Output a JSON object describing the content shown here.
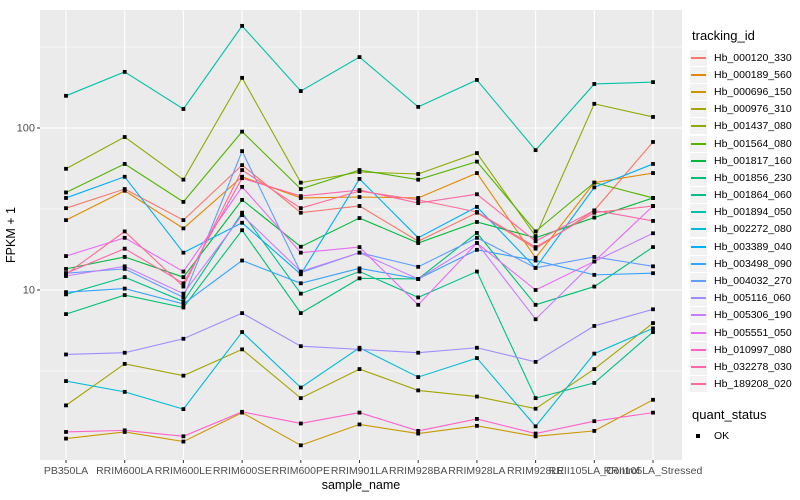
{
  "chart_data": {
    "type": "line",
    "xlabel": "sample_name",
    "ylabel": "FPKM + 1",
    "y_scale": "log10",
    "y_ticks": [
      10,
      100
    ],
    "y_minor": [
      3.162,
      31.62,
      316.2
    ],
    "ylim": [
      0.89,
      535
    ],
    "grid": "on",
    "panel_bg": "#EBEBEB",
    "grid_color": "#FFFFFF",
    "tick_text_color": "#4D4D4D",
    "point_color": "#000000",
    "legend_position": "right",
    "legend_title": "tracking_id",
    "legend2_title": "quant_status",
    "legend2_items": [
      {
        "label": "OK",
        "marker": "square"
      }
    ],
    "categories": [
      "PB350LA",
      "RRIM600LA",
      "RRIM600LE",
      "RRIM600SE",
      "RRIM600PE",
      "RRIM901LA",
      "RRIM928BA",
      "RRIM928LA",
      "RRIM928LE",
      "RRII105LA_Control",
      "RRII105LA_Stressed"
    ],
    "series": [
      {
        "name": "Hb_000120_330",
        "color": "#F8766D",
        "values": [
          32,
          42,
          27,
          59,
          30,
          33,
          20,
          30,
          18,
          31,
          82
        ]
      },
      {
        "name": "Hb_000189_560",
        "color": "#E58700",
        "values": [
          27,
          41,
          24,
          50,
          37,
          37.5,
          37,
          52.7,
          15.8,
          46,
          52.7
        ]
      },
      {
        "name": "Hb_000696_150",
        "color": "#C99800",
        "values": [
          1.21,
          1.33,
          1.16,
          1.75,
          1.1,
          1.48,
          1.3,
          1.45,
          1.25,
          1.35,
          2.1
        ]
      },
      {
        "name": "Hb_000976_310",
        "color": "#A3A500",
        "values": [
          1.94,
          3.5,
          2.96,
          4.3,
          2.15,
          3.25,
          2.4,
          2.2,
          1.85,
          3.25,
          6.25
        ]
      },
      {
        "name": "Hb_001437_080",
        "color": "#8CAB00",
        "values": [
          56,
          88,
          48,
          204,
          46,
          53.5,
          52,
          70,
          21.5,
          141,
          117
        ]
      },
      {
        "name": "Hb_001564_080",
        "color": "#52B400",
        "values": [
          40,
          60,
          35,
          95,
          42,
          55,
          48,
          62,
          23,
          46,
          37
        ]
      },
      {
        "name": "Hb_001817_160",
        "color": "#00BA38",
        "values": [
          13.5,
          16,
          12,
          36,
          18.5,
          27.8,
          19.5,
          26.3,
          21,
          28,
          37
        ]
      },
      {
        "name": "Hb_001856_230",
        "color": "#00BF74",
        "values": [
          7.1,
          9.3,
          7.8,
          23.4,
          7.2,
          11.8,
          11.7,
          22.5,
          8.1,
          10.5,
          18.4
        ]
      },
      {
        "name": "Hb_001864_060",
        "color": "#00C08B",
        "values": [
          9.4,
          12,
          8.5,
          30,
          9.5,
          13,
          9,
          13,
          2.15,
          2.67,
          5.5
        ]
      },
      {
        "name": "Hb_001894_050",
        "color": "#00C1A7",
        "values": [
          158,
          222,
          131,
          427,
          169,
          274,
          135,
          198,
          73,
          187,
          192
        ]
      },
      {
        "name": "Hb_002272_080",
        "color": "#00BCD6",
        "values": [
          2.74,
          2.35,
          1.84,
          5.5,
          2.5,
          4.4,
          2.9,
          3.8,
          1.44,
          4.05,
          5.8
        ]
      },
      {
        "name": "Hb_003389_040",
        "color": "#00B0F6",
        "values": [
          37,
          50,
          17,
          26,
          12.5,
          48.5,
          21,
          32.6,
          13.7,
          43,
          60
        ]
      },
      {
        "name": "Hb_003498_090",
        "color": "#35A2FF",
        "values": [
          9.7,
          10.2,
          8.2,
          15.2,
          11,
          13.6,
          11.7,
          17.7,
          15.2,
          12.4,
          12.7
        ]
      },
      {
        "name": "Hb_004032_270",
        "color": "#619CFF",
        "values": [
          12.7,
          13.5,
          9,
          72,
          12.8,
          17,
          13.9,
          21,
          13.7,
          16,
          14
        ]
      },
      {
        "name": "Hb_005116_060",
        "color": "#9C8DFF",
        "values": [
          4.0,
          4.1,
          5.0,
          7.2,
          4.5,
          4.3,
          4.1,
          4.4,
          3.6,
          6.0,
          7.6
        ]
      },
      {
        "name": "Hb_005306_190",
        "color": "#C77CFF",
        "values": [
          12.2,
          14,
          9.5,
          29,
          13,
          17,
          11.7,
          19.5,
          6.6,
          15,
          22.4
        ]
      },
      {
        "name": "Hb_005551_050",
        "color": "#E76BF3",
        "values": [
          16.2,
          21,
          13,
          43.3,
          17,
          18.4,
          8.1,
          19.5,
          10,
          15,
          33
        ]
      },
      {
        "name": "Hb_010997_080",
        "color": "#FF61C8",
        "values": [
          1.33,
          1.36,
          1.25,
          1.77,
          1.5,
          1.75,
          1.35,
          1.6,
          1.3,
          1.55,
          1.75
        ]
      },
      {
        "name": "Hb_032278_030",
        "color": "#FF66A8",
        "values": [
          12.7,
          18,
          11,
          49,
          38,
          41.4,
          34.4,
          39,
          20,
          31,
          26.7
        ]
      },
      {
        "name": "Hb_189208_020",
        "color": "#FF6B96",
        "values": [
          12.5,
          23,
          10.5,
          55,
          32,
          40.8,
          36,
          30.3,
          18.4,
          30,
          33
        ]
      }
    ]
  }
}
